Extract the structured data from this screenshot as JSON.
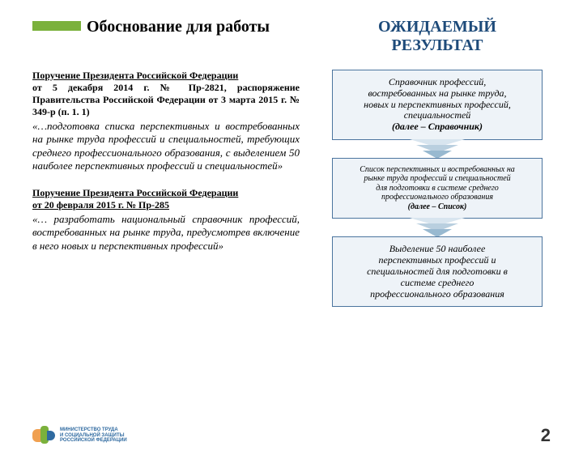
{
  "header": {
    "left": "Обоснование для работы",
    "right_line1": "ОЖИДАЕМЫЙ",
    "right_line2": "РЕЗУЛЬТАТ"
  },
  "orders": [
    {
      "title": "Поручение Президента Российской Федерации",
      "meta": "от 5 декабря 2014 г. № Пр-2821, распоряжение Правительства Российской Федерации от 3 марта 2015 г. № 349-р (п. 1. 1)",
      "quote": "«…подготовка списка перспективных и востребованных на рынке труда профессий и специальностей, требующих среднего профессионального образования, с выделением 50 наиболее перспективных профессий и специальностей»"
    },
    {
      "title": "Поручение Президента Российской Федерации",
      "meta": "от 20 февраля 2015 г. № Пр-285",
      "quote": "«… разработать национальный справочник профессий, востребованных на рынке труда, предусмотрев включение в него новых и перспективных профессий»"
    }
  ],
  "results": {
    "box1_lines": [
      "Справочник профессий,",
      "востребованных на рынке труда,",
      "новых и перспективных профессий,",
      "специальностей"
    ],
    "box1_short": "(далее – Справочник)",
    "box1_fontsize": "12px",
    "box2_lines": [
      "Список перспективных и востребованных на",
      "рынке труда профессий и специальностей",
      "для подготовки  в системе среднего",
      "профессионального образования"
    ],
    "box2_short": "(далее – Список)",
    "box2_fontsize": "10px",
    "box3_lines": [
      "Выделение 50 наиболее",
      "перспективных  профессий и",
      "специальностей для подготовки  в",
      "системе среднего",
      "профессионального образования"
    ],
    "box3_fontsize": "12px"
  },
  "colors": {
    "accent_bar": "#7bb13c",
    "header_right": "#1e4b7a",
    "box_bg": "#eef3f8",
    "box_border": "#4b749e"
  },
  "footer": {
    "ministry_line1": "МИНИСТЕРСТВО ТРУДА",
    "ministry_line2": "И СОЦИАЛЬНОЙ ЗАЩИТЫ",
    "ministry_line3": "РОССИЙСКОЙ ФЕДЕРАЦИИ",
    "page_number": "2"
  }
}
